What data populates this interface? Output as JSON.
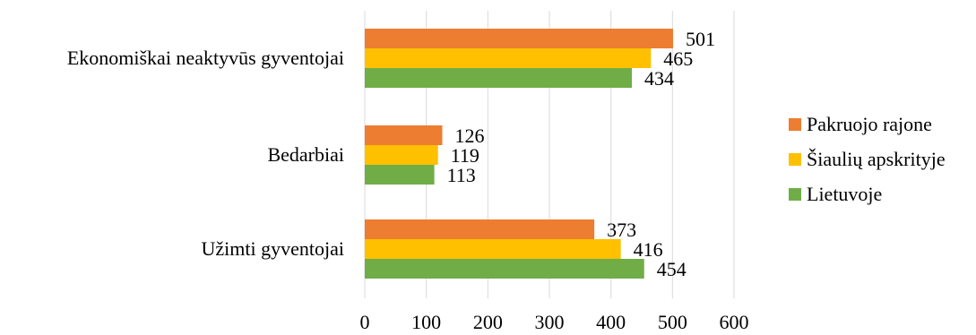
{
  "chart_data": {
    "type": "bar",
    "orientation": "horizontal",
    "categories": [
      "Ekonomiškai neaktyvūs gyventojai",
      "Bedarbiai",
      "Užimti gyventojai"
    ],
    "series": [
      {
        "name": "Pakruojo rajone",
        "color": "#ED7D31",
        "values": [
          501,
          126,
          373
        ]
      },
      {
        "name": "Šiaulių apskrityje",
        "color": "#FFC000",
        "values": [
          465,
          119,
          416
        ]
      },
      {
        "name": "Lietuvoje",
        "color": "#70AD47",
        "values": [
          434,
          113,
          454
        ]
      }
    ],
    "xlim": [
      0,
      600
    ],
    "xticks": [
      "0",
      "100",
      "200",
      "300",
      "400",
      "500",
      "600"
    ],
    "grid": "vertical",
    "legend_position": "right"
  }
}
